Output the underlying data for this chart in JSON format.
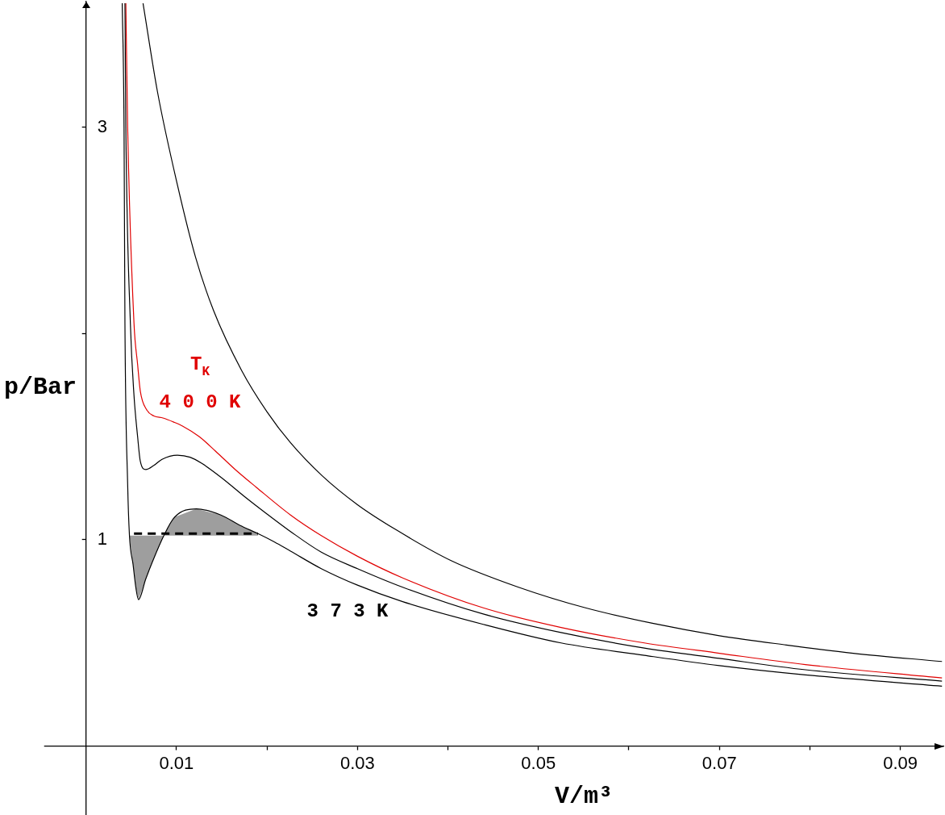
{
  "chart_data": {
    "type": "line",
    "xlabel": "V/m³",
    "ylabel": "p/Bar",
    "xlim": [
      0,
      0.0948
    ],
    "ylim": [
      0,
      3.61
    ],
    "xticks": [
      0.01,
      {
        "value": 0.02,
        "label": null
      },
      0.03,
      {
        "value": 0.04,
        "label": null
      },
      0.05,
      {
        "value": 0.06,
        "label": null
      },
      0.07,
      {
        "value": 0.08,
        "label": null
      },
      0.09
    ],
    "yticks": [
      1,
      {
        "value": 2,
        "label": null
      },
      3
    ],
    "series": [
      {
        "name": "3 7 3 K",
        "color": "#000000",
        "x": [
          0.004,
          0.0042,
          0.0043,
          0.0046,
          0.0048,
          0.0052,
          0.0055,
          0.0058,
          0.0066,
          0.0074,
          0.0086,
          0.0098,
          0.0122,
          0.0149,
          0.017,
          0.019,
          0.0208,
          0.0226,
          0.026,
          0.03,
          0.035,
          0.0439,
          0.0525,
          0.0617,
          0.07,
          0.0795,
          0.0946
        ],
        "values": [
          3.6,
          3.0,
          2.05,
          1.27,
          1.02,
          0.88,
          0.77,
          0.71,
          0.81,
          0.9,
          1.02,
          1.11,
          1.15,
          1.12,
          1.07,
          1.03,
          0.99,
          0.945,
          0.86,
          0.78,
          0.7,
          0.59,
          0.5,
          0.44,
          0.39,
          0.345,
          0.29
        ],
        "lower": [
          null,
          null,
          null,
          null,
          1.02,
          0.88,
          0.77,
          0.71,
          0.81,
          0.9,
          1.02,
          1.02,
          1.02,
          1.02,
          1.02,
          1.02,
          null,
          null,
          null,
          null,
          null,
          null,
          null,
          null,
          null,
          null,
          null
        ],
        "upper": [
          null,
          null,
          null,
          null,
          1.02,
          1.02,
          1.02,
          1.02,
          1.02,
          1.02,
          1.02,
          1.11,
          1.15,
          1.12,
          1.07,
          1.03,
          null,
          null,
          null,
          null,
          null,
          null,
          null,
          null,
          null,
          null,
          null
        ]
      },
      {
        "color": "#000000",
        "x": [
          0.0043,
          0.0044,
          0.0049,
          0.0053,
          0.0057,
          0.006,
          0.0066,
          0.0075,
          0.0084,
          0.0101,
          0.0115,
          0.0128,
          0.015,
          0.0175,
          0.02,
          0.0226,
          0.026,
          0.03,
          0.035,
          0.0439,
          0.0525,
          0.0617,
          0.07,
          0.0795,
          0.0946
        ],
        "values": [
          3.6,
          3.0,
          2.05,
          1.7,
          1.5,
          1.38,
          1.34,
          1.36,
          1.39,
          1.41,
          1.4,
          1.37,
          1.3,
          1.21,
          1.125,
          1.04,
          0.94,
          0.86,
          0.77,
          0.64,
          0.55,
          0.475,
          0.425,
          0.37,
          0.315
        ]
      },
      {
        "name": "T$_{K}$\n4 0 0 K",
        "color": "#e00000",
        "x": [
          0.0044,
          0.0046,
          0.0053,
          0.0057,
          0.006,
          0.0067,
          0.0075,
          0.0085,
          0.0097,
          0.0107,
          0.0125,
          0.0143,
          0.0165,
          0.0188,
          0.0226,
          0.026,
          0.03,
          0.035,
          0.0439,
          0.0525,
          0.0617,
          0.07,
          0.0795,
          0.0946
        ],
        "values": [
          3.6,
          3.0,
          2.05,
          1.85,
          1.72,
          1.63,
          1.6,
          1.59,
          1.57,
          1.55,
          1.5,
          1.43,
          1.34,
          1.255,
          1.12,
          1.02,
          0.92,
          0.815,
          0.67,
          0.575,
          0.5,
          0.45,
          0.395,
          0.33
        ]
      },
      {
        "color": "#000000",
        "x": [
          0.0063,
          0.0079,
          0.0101,
          0.0121,
          0.0141,
          0.0172,
          0.02,
          0.0226,
          0.0261,
          0.03,
          0.0342,
          0.0403,
          0.0478,
          0.0552,
          0.0626,
          0.07,
          0.0774,
          0.0848,
          0.0946
        ],
        "values": [
          3.6,
          3.17,
          2.72,
          2.37,
          2.11,
          1.82,
          1.62,
          1.47,
          1.31,
          1.17,
          1.05,
          0.9,
          0.77,
          0.67,
          0.595,
          0.535,
          0.49,
          0.45,
          0.41
        ]
      },
      {
        "color": "#000000",
        "line_style": "dashed",
        "x": [
          0.0053,
          0.019
        ],
        "values": [
          1.03,
          1.03
        ]
      }
    ]
  }
}
